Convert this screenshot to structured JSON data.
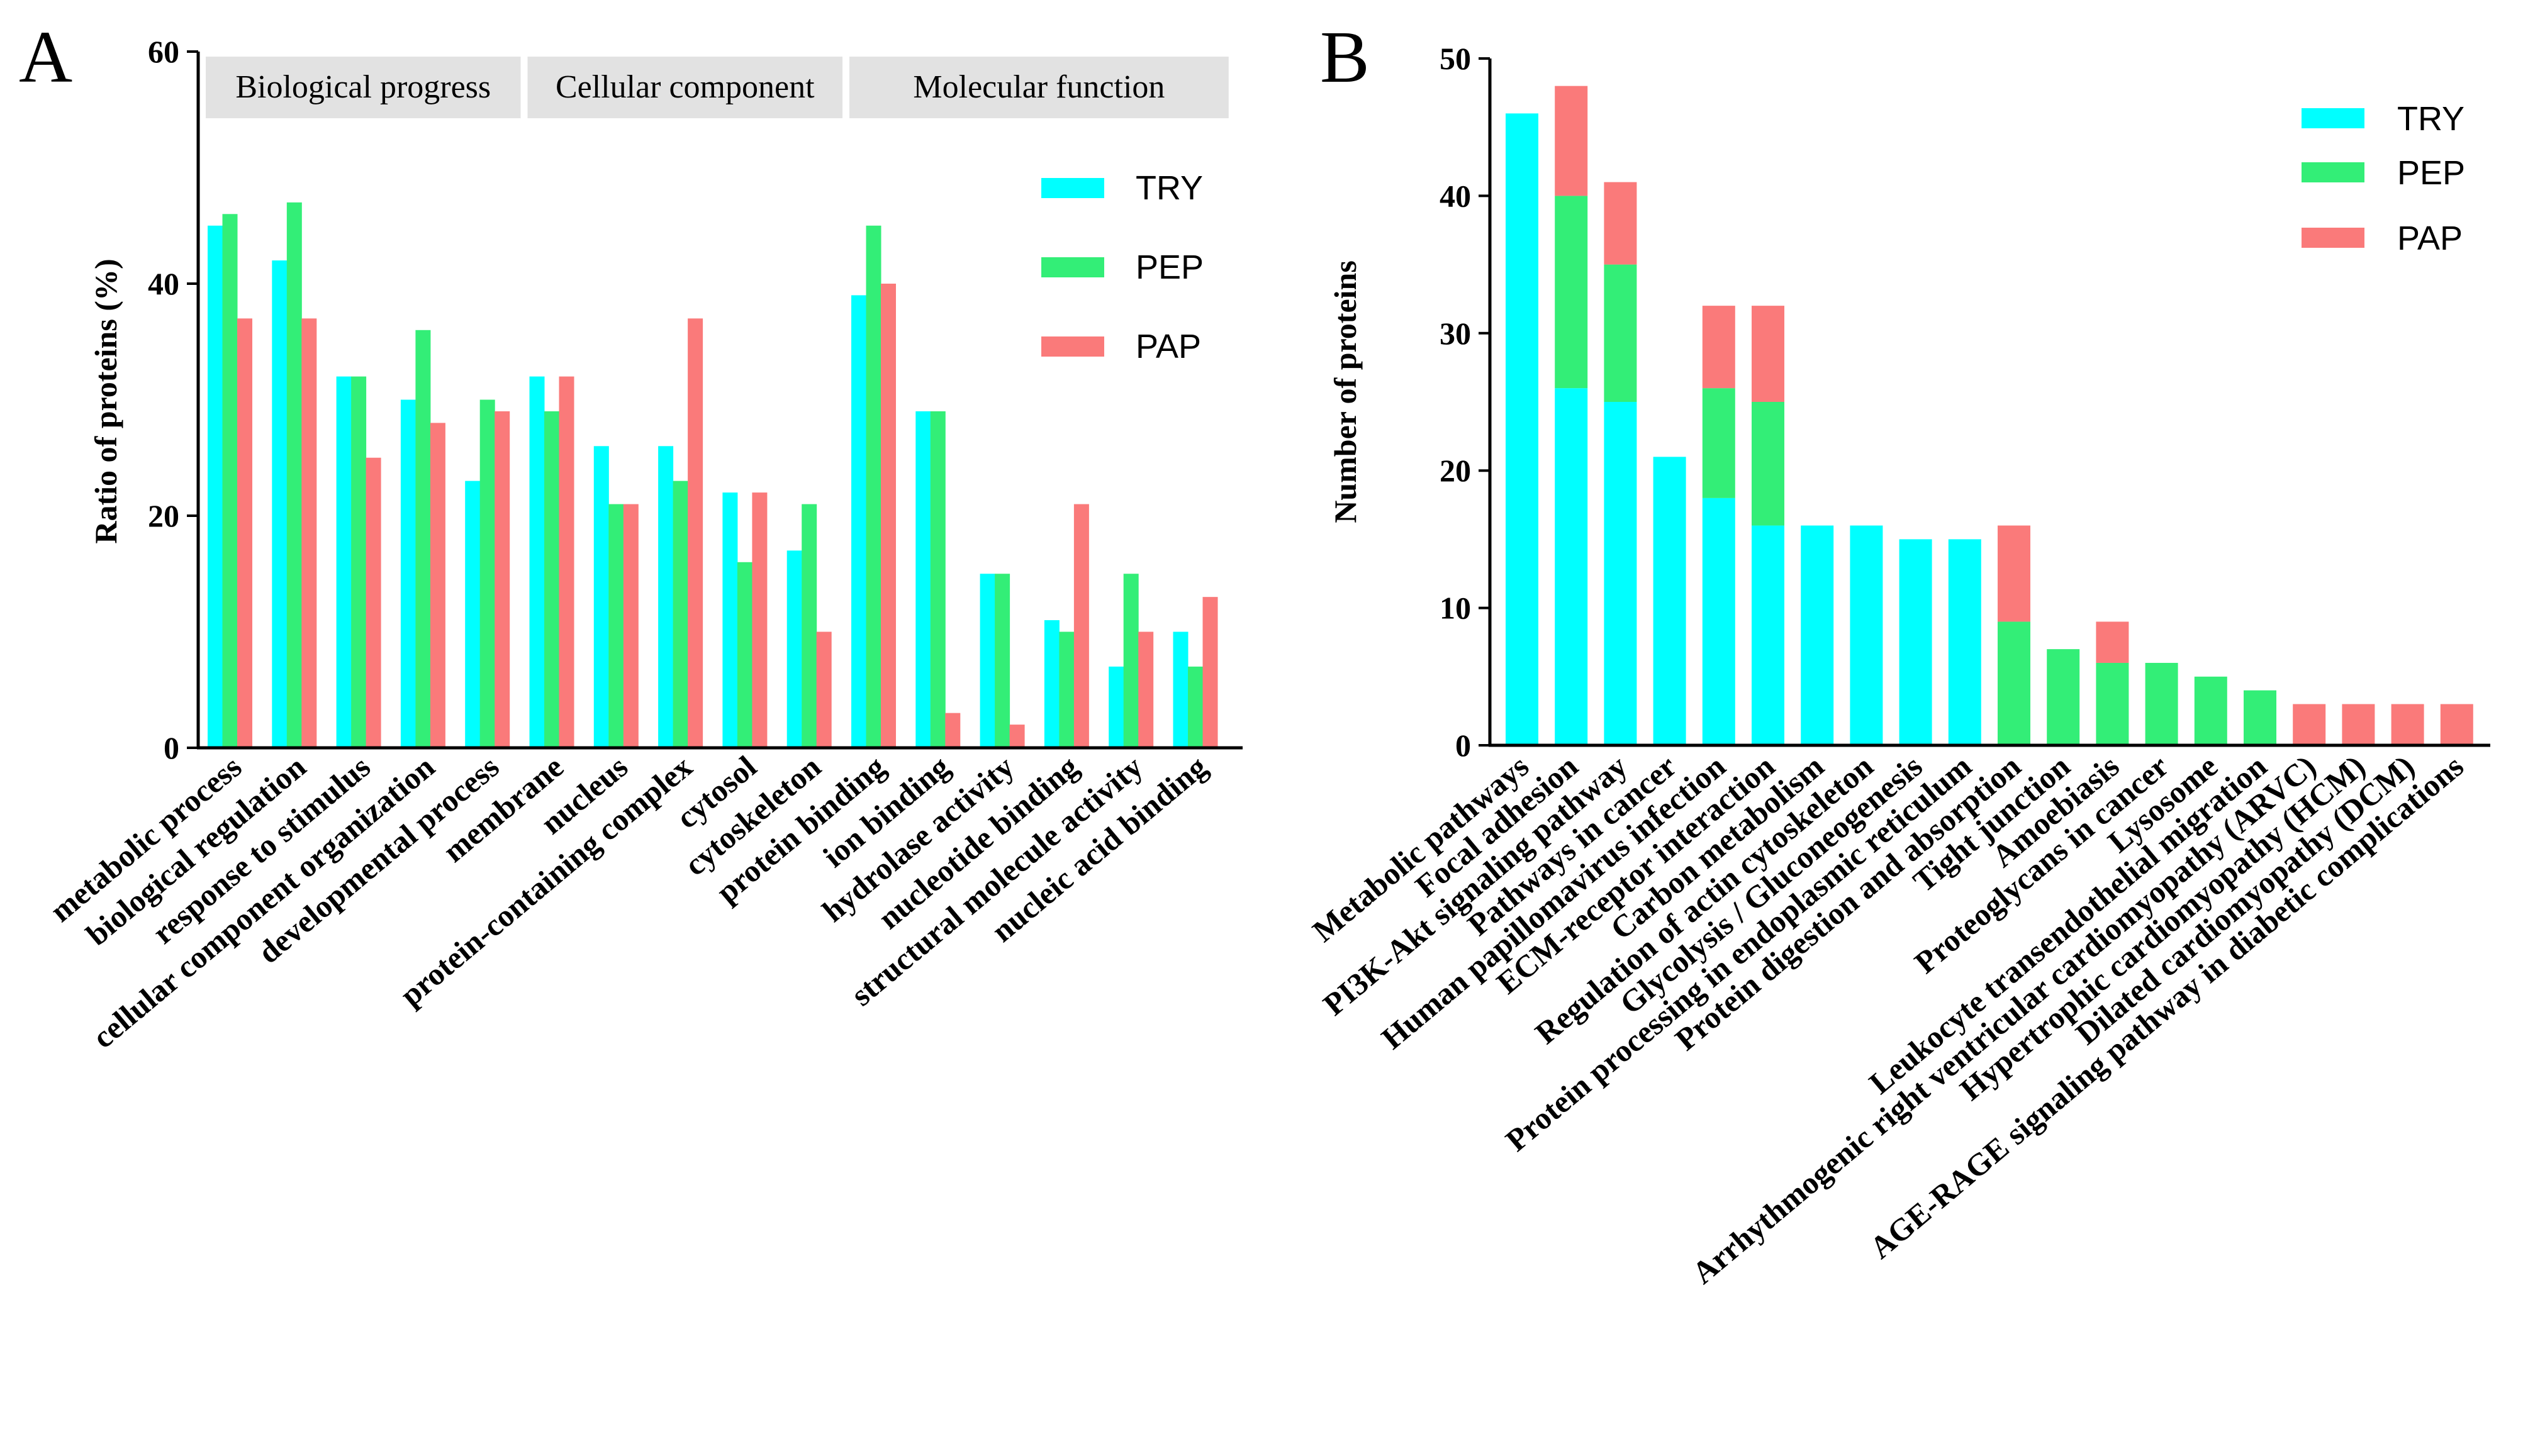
{
  "colors": {
    "TRY": "#00FFFF",
    "PEP": "#33EE77",
    "PAP": "#FA7A7A",
    "group_box": "#E2E2E2"
  },
  "chart_data": [
    {
      "panel_label": "A",
      "type": "bar",
      "ylabel": "Ratio of proteins (%)",
      "ylim": [
        0,
        60
      ],
      "yticks": [
        "0",
        "20",
        "40",
        "60"
      ],
      "grid": false,
      "legend_position": "top-right",
      "groups": [
        {
          "label": "Biological progress",
          "start": 0,
          "end": 4
        },
        {
          "label": "Cellular component",
          "start": 5,
          "end": 9
        },
        {
          "label": "Molecular function",
          "start": 10,
          "end": 15
        }
      ],
      "categories": [
        "metabolic process",
        "biological regulation",
        "response to stimulus",
        "cellular component organization",
        "developmental process",
        "membrane",
        "nucleus",
        "protein-containing complex",
        "cytosol",
        "cytoskeleton",
        "protein binding",
        "ion binding",
        "hydrolase activity",
        "nucleotide binding",
        "structural molecule activity",
        "nucleic acid binding"
      ],
      "series": [
        {
          "name": "TRY",
          "values": [
            45,
            42,
            32,
            30,
            23,
            32,
            26,
            26,
            22,
            17,
            39,
            29,
            15,
            11,
            7,
            10
          ]
        },
        {
          "name": "PEP",
          "values": [
            46,
            47,
            32,
            36,
            30,
            29,
            21,
            23,
            16,
            21,
            45,
            29,
            15,
            10,
            15,
            7
          ]
        },
        {
          "name": "PAP",
          "values": [
            37,
            37,
            25,
            28,
            29,
            32,
            21,
            37,
            22,
            10,
            40,
            3,
            2,
            21,
            10,
            13
          ]
        }
      ]
    },
    {
      "panel_label": "B",
      "type": "bar",
      "stacked": true,
      "ylabel": "Number of proteins",
      "ylim": [
        0,
        50
      ],
      "yticks": [
        "0",
        "10",
        "20",
        "30",
        "40",
        "50"
      ],
      "grid": false,
      "legend_position": "top-right",
      "categories": [
        "Metabolic pathways",
        "Focal adhesion",
        "PI3K-Akt signaling pathway",
        "Pathways in cancer",
        "Human papillomavirus infection",
        "ECM-receptor interaction",
        "Carbon metabolism",
        "Regulation of actin cytoskeleton",
        "Glycolysis / Gluconeogenesis",
        "Protein processing in endoplasmic reticulum",
        "Protein digestion and absorption",
        "Tight junction",
        "Amoebiasis",
        "Proteoglycans in cancer",
        "Lysosome",
        "Leukocyte transendothelial migration",
        "Arrhythmogenic right ventricular cardiomyopathy (ARVC)",
        "Hypertrophic cardiomyopathy (HCM)",
        "Dilated cardiomyopathy (DCM)",
        "AGE-RAGE signaling pathway in diabetic complications"
      ],
      "series": [
        {
          "name": "TRY",
          "values": [
            46,
            26,
            25,
            21,
            18,
            16,
            16,
            16,
            15,
            15,
            0,
            0,
            0,
            0,
            0,
            0,
            0,
            0,
            0,
            0
          ]
        },
        {
          "name": "PEP",
          "values": [
            0,
            14,
            10,
            0,
            8,
            9,
            0,
            0,
            0,
            0,
            9,
            7,
            6,
            6,
            5,
            4,
            0,
            0,
            0,
            0
          ]
        },
        {
          "name": "PAP",
          "values": [
            0,
            8,
            6,
            0,
            6,
            7,
            0,
            0,
            0,
            0,
            7,
            0,
            3,
            0,
            0,
            0,
            3,
            3,
            3,
            3
          ]
        }
      ]
    }
  ]
}
